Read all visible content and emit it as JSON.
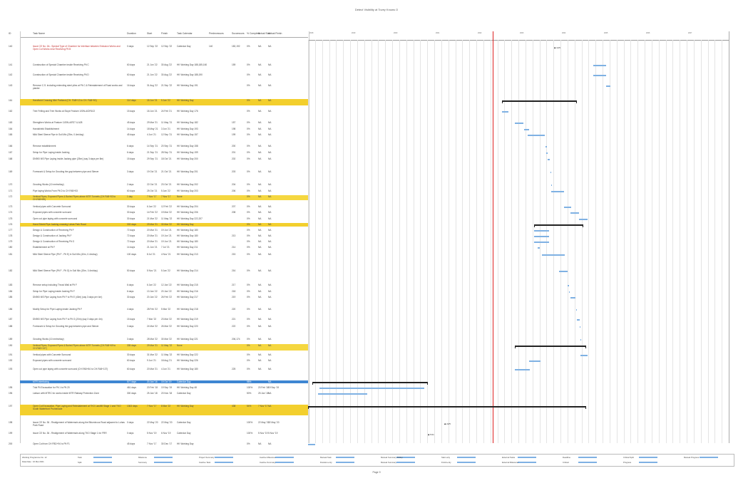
{
  "page_title": "Detect Visibility at Tovey Knows O",
  "columns": [
    "ID",
    "Task Name",
    "Duration",
    "Start",
    "Finish",
    "Task Calendar",
    "Predecessors",
    "Successors",
    "% Complete",
    "Actual Start",
    "Actual Finish"
  ],
  "timeline_years": [
    "2018",
    "2019",
    "2020",
    "2021",
    "2022",
    "2023",
    "2024",
    "2025",
    "2026",
    "2027"
  ],
  "today_label": "",
  "rows": [
    {
      "id": "140",
      "name": "Issue CE No. 3A - Special Type of Chamber for Interface between Emission Works and Open Cut Works near Receiving Pit B",
      "dur": "0 days",
      "start": "12 Sep '22",
      "finish": "12 Sep '22",
      "cal": "Calendar Day",
      "pred": "140",
      "succ": "182,192",
      "pct": "0%",
      "as": "NA",
      "af": "NA",
      "style": "red"
    },
    {
      "id": "141",
      "name": "Construction of Special Chamber inside Receiving Pit C",
      "dur": "60 days",
      "start": "21 Jun '22",
      "finish": "30 Aug '22",
      "cal": "HK Working Day 188,185,160",
      "pred": "",
      "succ": "159",
      "pct": "0%",
      "as": "NA",
      "af": "NA",
      "style": ""
    },
    {
      "id": "142",
      "name": "Construction of Special Chamber inside Receiving Pit D",
      "dur": "60 days",
      "start": "21 Jun '22",
      "finish": "30 Aug '22",
      "cal": "HK Working Day 188,190",
      "pred": "",
      "succ": "",
      "pct": "0%",
      "as": "NA",
      "af": "NA",
      "style": ""
    },
    {
      "id": "143",
      "name": "Remove C.S. including extending steel piles at Pit C & Reinstatement of Road works and planter",
      "dur": "16 days",
      "start": "31 Aug '22",
      "finish": "21 Sep '22",
      "cal": "HK Working Day 191",
      "pred": "",
      "succ": "",
      "pct": "0%",
      "as": "NA",
      "af": "NA",
      "style": ""
    },
    {
      "id": "161",
      "name": "Handhold Crossing Mini Portland (CH. FAB+13 to CH. FAB+50)",
      "dur": "114 days",
      "start": "18 Jun '21",
      "finish": "5 Jan '22",
      "cal": "HK Working Day",
      "pred": "",
      "succ": "",
      "pct": "0%",
      "as": "NA",
      "af": "NA",
      "style": "hl"
    },
    {
      "id": "162",
      "name": "Tree Felling and Tree Works at Slope Feature 1/SW-A/DR102",
      "dur": "15 days",
      "start": "18 Jun '21",
      "finish": "24 Feb '21",
      "cal": "HK Working Day 176",
      "pred": "",
      "succ": "",
      "pct": "0%",
      "as": "NA",
      "af": "NA",
      "style": ""
    },
    {
      "id": "163",
      "name": "Strengthen Works at Feature 11SW-A/R27 & A28",
      "dur": "45 days",
      "start": "29 Mar '21",
      "finish": "11 May '21",
      "cal": "HK Working Day 182",
      "pred": "",
      "succ": "157",
      "pct": "0%",
      "as": "NA",
      "af": "NA",
      "style": ""
    },
    {
      "id": "164",
      "name": "Handshield Establishment",
      "dur": "14 days",
      "start": "18 May '21",
      "finish": "3 Jun '21",
      "cal": "HK Working Day 193",
      "pred": "",
      "succ": "198",
      "pct": "0%",
      "as": "NA",
      "af": "NA",
      "style": ""
    },
    {
      "id": "165",
      "name": "Mild Steel Sleeve Pipe in Soil Mix (25m, 0.4m/day)",
      "dur": "45 days",
      "start": "4 Jun '21",
      "finish": "12 Sep '21",
      "cal": "HK Working Day 157",
      "pred": "",
      "succ": "199",
      "pct": "0%",
      "as": "NA",
      "af": "NA",
      "style": ""
    },
    {
      "id": "166",
      "name": "Remove establishment",
      "dur": "6 days",
      "start": "14 Sep '21",
      "finish": "20 Sep '21",
      "cal": "HK Working Day 158",
      "pred": "",
      "succ": "200",
      "pct": "0%",
      "as": "NA",
      "af": "NA",
      "style": ""
    },
    {
      "id": "167",
      "name": "Setup for Pipe Laying inside Jacking",
      "dur": "6 days",
      "start": "21 Sep '21",
      "finish": "28 Sep '21",
      "cal": "HK Working Day 199",
      "pred": "",
      "succ": "201",
      "pct": "0%",
      "as": "NA",
      "af": "NA",
      "style": ""
    },
    {
      "id": "168",
      "name": "DN900 MS Pipe Laying inside Jacking pipe (25m) (say 3 days per 8m)",
      "dur": "15 days",
      "start": "29 Sep '21",
      "finish": "18 Oct '21",
      "cal": "HK Working Day 200",
      "pred": "",
      "succ": "202",
      "pct": "0%",
      "as": "NA",
      "af": "NA",
      "style": ""
    },
    {
      "id": "169",
      "name": "Formwork & Setup for Grouting the gap between pipe and Sleeve",
      "dur": "3 days",
      "start": "19 Oct '21",
      "finish": "21 Oct '21",
      "cal": "HK Working Day 201",
      "pred": "",
      "succ": "203",
      "pct": "0%",
      "as": "NA",
      "af": "NA",
      "style": ""
    },
    {
      "id": "170",
      "name": "Grouting Works (10 metre/day)",
      "dur": "2 days",
      "start": "22 Oct '21",
      "finish": "23 Oct '21",
      "cal": "HK Working Day 202",
      "pred": "",
      "succ": "204",
      "pct": "0%",
      "as": "NA",
      "af": "NA",
      "style": ""
    },
    {
      "id": "171",
      "name": "Pipe laying Works From Pit D to CH FAB+53",
      "dur": "60 days",
      "start": "25 Oct '21",
      "finish": "5 Jan '22",
      "cal": "HK Working Day 203",
      "pred": "",
      "succ": "206",
      "pct": "0%",
      "as": "NA",
      "af": "NA",
      "style": ""
    },
    {
      "id": "172",
      "name": "Vertical Pipes, Exposed Pipes & Buried Pipes above MTR Tunnels (CH.FAB+53 to CH.FAB+89)",
      "dur": "1 day",
      "start": "7 Nov '17",
      "finish": "7 Nov '17",
      "cal": "None",
      "pred": "",
      "succ": "",
      "pct": "0%",
      "as": "NA",
      "af": "NA",
      "style": "hl2"
    },
    {
      "id": "173",
      "name": "Vertical pipes with Concrete Surround",
      "dur": "30 days",
      "start": "6 Jan '22",
      "finish": "12 Feb '22",
      "cal": "HK Working Day 204",
      "pred": "",
      "succ": "207",
      "pct": "0%",
      "as": "NA",
      "af": "NA",
      "style": ""
    },
    {
      "id": "174",
      "name": "Exposed pipes with concrete surround",
      "dur": "30 days",
      "start": "14 Feb '22",
      "finish": "19 Mar '22",
      "cal": "HK Working Day 206",
      "pred": "",
      "succ": "208",
      "pct": "0%",
      "as": "NA",
      "af": "NA",
      "style": ""
    },
    {
      "id": "175",
      "name": "Open cut pipe laying with concrete surround",
      "dur": "30 days",
      "start": "21 Mar '22",
      "finish": "11 May '22",
      "cal": "HK Working Day 222,207",
      "pred": "",
      "succ": "",
      "pct": "0%",
      "as": "NA",
      "af": "NA",
      "style": ""
    },
    {
      "id": "176",
      "name": "Hand Shield Pipe Jacking crossing Lohas Park Road",
      "dur": "303 days",
      "start": "29 Mar '21",
      "finish": "30 Mar '22",
      "cal": "HK Working Day",
      "pred": "",
      "succ": "",
      "pct": "0%",
      "as": "NA",
      "af": "NA",
      "style": "hl"
    },
    {
      "id": "177",
      "name": "Design & Construction of Receiving Pit F",
      "dur": "72 days",
      "start": "20 Mar '21",
      "finish": "19 Jun '21",
      "cal": "HK Working Day 180",
      "pred": "",
      "succ": "",
      "pct": "0%",
      "as": "NA",
      "af": "NA",
      "style": ""
    },
    {
      "id": "178",
      "name": "Design & Construction of Jacking Pit F",
      "dur": "72 days",
      "start": "20 Mar '21",
      "finish": "19 Jun '21",
      "cal": "HK Working Day 180",
      "pred": "",
      "succ": "213",
      "pct": "0%",
      "as": "NA",
      "af": "NA",
      "style": ""
    },
    {
      "id": "179",
      "name": "Design & Construction of Receiving Pit G",
      "dur": "72 days",
      "start": "20 Mar '21",
      "finish": "19 Jun '21",
      "cal": "HK Working Day 180",
      "pred": "",
      "succ": "",
      "pct": "0%",
      "as": "NA",
      "af": "NA",
      "style": ""
    },
    {
      "id": "180",
      "name": "Establishment at Pit F",
      "dur": "14 days",
      "start": "21 Jun '21",
      "finish": "7 Jul '21",
      "cal": "HK Working Day 211",
      "pred": "",
      "succ": "214",
      "pct": "0%",
      "as": "NA",
      "af": "NA",
      "style": ""
    },
    {
      "id": "181",
      "name": "Mild Steel Sleeve Pipe (Pit F - Pit E) in Soil Mix (40m, 0.4m/day)",
      "dur": "100 days",
      "start": "8 Jul '21",
      "finish": "4 Nov '21",
      "cal": "HK Working Day 213",
      "pred": "",
      "succ": "215",
      "pct": "0%",
      "as": "NA",
      "af": "NA",
      "style": ""
    },
    {
      "id": "182",
      "name": "Mild Steel Sleeve Pipe (Pit F - Pit G) in Soil Mix (20m, 0.4m/day)",
      "dur": "50 days",
      "start": "5 Nov '21",
      "finish": "5 Jan '22",
      "cal": "HK Working Day 214",
      "pred": "",
      "succ": "216",
      "pct": "0%",
      "as": "NA",
      "af": "NA",
      "style": ""
    },
    {
      "id": "183",
      "name": "Remove setup including Thrust Wall at Pit F",
      "dur": "6 days",
      "start": "6 Jan '22",
      "finish": "12 Jan '22",
      "cal": "HK Working Day 215",
      "pred": "",
      "succ": "217",
      "pct": "0%",
      "as": "NA",
      "af": "NA",
      "style": ""
    },
    {
      "id": "184",
      "name": "Setup for Pipe Laying inside Jacking Pit F",
      "dur": "6 days",
      "start": "13 Jan '22",
      "finish": "20 Jan '22",
      "cal": "HK Working Day 216",
      "pred": "",
      "succ": "218",
      "pct": "0%",
      "as": "NA",
      "af": "NA",
      "style": ""
    },
    {
      "id": "185",
      "name": "DN900 MS Pipe Laying from Pit F to Pit E (40m) (say 3 days per 4m)",
      "dur": "30 days",
      "start": "20 Jan '22",
      "finish": "26 Feb '22",
      "cal": "HK Working Day 217",
      "pred": "",
      "succ": "219",
      "pct": "0%",
      "as": "NA",
      "af": "NA",
      "style": ""
    },
    {
      "id": "186",
      "name": "Modify Setup for Pipe Laying inside Jacking Pit F",
      "dur": "4 days",
      "start": "28 Feb '22",
      "finish": "5 Mar '22",
      "cal": "HK Working Day 218",
      "pred": "",
      "succ": "220",
      "pct": "0%",
      "as": "NA",
      "af": "NA",
      "style": ""
    },
    {
      "id": "187",
      "name": "DN900 MS Pipe Laying from Pit F to Pit G (20m) (say 3 days per 4m)",
      "dur": "15 days",
      "start": "7 Mar '22",
      "finish": "23 Mar '22",
      "cal": "HK Working Day 219",
      "pred": "",
      "succ": "221",
      "pct": "0%",
      "as": "NA",
      "af": "NA",
      "style": ""
    },
    {
      "id": "188",
      "name": "Formwork & Setup for Grouting the gap between pipe and Sleeve",
      "dur": "3 days",
      "start": "24 Mar '22",
      "finish": "26 Mar '22",
      "cal": "HK Working Day 220",
      "pred": "",
      "succ": "222",
      "pct": "0%",
      "as": "NA",
      "af": "NA",
      "style": ""
    },
    {
      "id": "189",
      "name": "Grouting Works (10 metre/day)",
      "dur": "3 days",
      "start": "28 Mar '22",
      "finish": "30 Mar '22",
      "cal": "HK Working Day 221",
      "pred": "",
      "succ": "206,174",
      "pct": "0%",
      "as": "NA",
      "af": "NA",
      "style": ""
    },
    {
      "id": "190",
      "name": "Vertical Pipes, Exposed Pipes & Buried Pipes above MTR Tunnels (CH.FAB+69 to CH.FAB+137)",
      "dur": "335 days",
      "start": "29 Mar '21",
      "finish": "11 May '22",
      "cal": "None",
      "pred": "",
      "succ": "",
      "pct": "0%",
      "as": "NA",
      "af": "NA",
      "style": "hl2"
    },
    {
      "id": "191",
      "name": "Vertical pipes with Concrete Surround",
      "dur": "30 days",
      "start": "31 Mar '22",
      "finish": "11 May '22",
      "cal": "HK Working Day 222",
      "pred": "",
      "succ": "",
      "pct": "0%",
      "as": "NA",
      "af": "NA",
      "style": ""
    },
    {
      "id": "192",
      "name": "Exposed pipes with concrete surround",
      "dur": "60 days",
      "start": "9 Jun '21",
      "finish": "18 Aug '21",
      "cal": "HK Working Day 226",
      "pred": "",
      "succ": "",
      "pct": "0%",
      "as": "NA",
      "af": "NA",
      "style": ""
    },
    {
      "id": "193",
      "name": "Open cut pipe laying with concrete surround (CH.FAB+84 to CH.FAB+137)",
      "dur": "60 days",
      "start": "20 Mar '21",
      "finish": "4 Jun '21",
      "cal": "HK Working Day 180",
      "pred": "",
      "succ": "225",
      "pct": "0%",
      "as": "NA",
      "af": "NA",
      "style": ""
    },
    {
      "id": "194",
      "name": "MTR Interfacing",
      "dur": "577 days",
      "start": "20 Jan '16",
      "finish": "19 Oct '19",
      "cal": "Calendar Day",
      "pred": "",
      "succ": "",
      "pct": "98%",
      "as": "",
      "af": "NA",
      "style": "blue"
    },
    {
      "id": "195",
      "name": "Trial Pit Excavation for Pit 1 to Pit 20",
      "dur": "461 days",
      "start": "20 Feb '18",
      "finish": "19 Sep '19",
      "cal": "HK Working Day 48",
      "pred": "",
      "succ": "",
      "pct": "100%",
      "as": "20 Feb '18",
      "af": "19 Sep '19",
      "style": ""
    },
    {
      "id": "196",
      "name": "Liaison with MTRC for works inside MTR Railway Protection Zone",
      "dur": "300 days",
      "start": "25 Jan '18",
      "finish": "20 Nov '18",
      "cal": "Calendar Day",
      "pred": "",
      "succ": "",
      "pct": "50%",
      "as": "25 Jan '18",
      "af": "NA",
      "style": ""
    },
    {
      "id": "197",
      "name": "Open Cut Excavation, Pipe Laying and Reinstatement at TKO Landfill Stage 1 and TKO South Waterfront Promenade",
      "dur": "1363 days",
      "start": "7 Nov '17",
      "finish": "8 Mar '22",
      "cal": "HK Working Day",
      "pred": "",
      "succ": "438",
      "pct": "54%",
      "as": "7 Nov '17",
      "af": "NA",
      "style": "hl"
    },
    {
      "id": "198",
      "name": "Issue CE No. 36 - Realignment of Watermain along the Bituminous Road adjacent to Lohas Park Road",
      "dur": "0 days",
      "start": "22 May '20",
      "finish": "22 May '20",
      "cal": "Calendar Day",
      "pred": "",
      "succ": "",
      "pct": "100%",
      "as": "22 May '20",
      "af": "22 May '20",
      "style": ""
    },
    {
      "id": "199",
      "name": "Issue CE No. 36 - Realignment of Watermain along TKO Stage 1 for FRR",
      "dur": "0 days",
      "start": "5 Nov '19",
      "finish": "6 Nov '19",
      "cal": "Calendar Day",
      "pred": "",
      "succ": "",
      "pct": "100%",
      "as": "5 Nov '19",
      "af": "5 Nov '19",
      "style": ""
    },
    {
      "id": "200",
      "name": "Open Cut from CH FBD+94 to Pit F1",
      "dur": "45 days",
      "start": "7 Nov '17",
      "finish": "30 Dec '17",
      "cal": "HK Working Day",
      "pred": "",
      "succ": "",
      "pct": "0%",
      "as": "NA",
      "af": "NA",
      "style": ""
    }
  ],
  "milestones": [
    {
      "label": "12/9"
    },
    {
      "label": "22/5"
    },
    {
      "label": "5/11"
    }
  ],
  "legend": [
    "Task",
    "Split",
    "Milestone",
    "Summary",
    "Project Summary",
    "Inactive Task",
    "Inactive Milestone",
    "Inactive Summary",
    "Manual Task",
    "Duration-only",
    "Manual Summary Rollup",
    "Manual Summary",
    "Start-only",
    "Finish-only",
    "External Tasks",
    "External Milestone",
    "Deadline",
    "Critical",
    "Critical Split",
    "Progress",
    "Manual Progress"
  ],
  "project_info": {
    "line1": "Working Programme No. 12",
    "line2": "Data Date : 16 Mar 2021"
  },
  "footer": "Page 9",
  "colors": {
    "bar": "#7fb1e3",
    "highlight": "#f3cf2d",
    "blue_row": "#3e86d2",
    "today": "#dd2222"
  }
}
